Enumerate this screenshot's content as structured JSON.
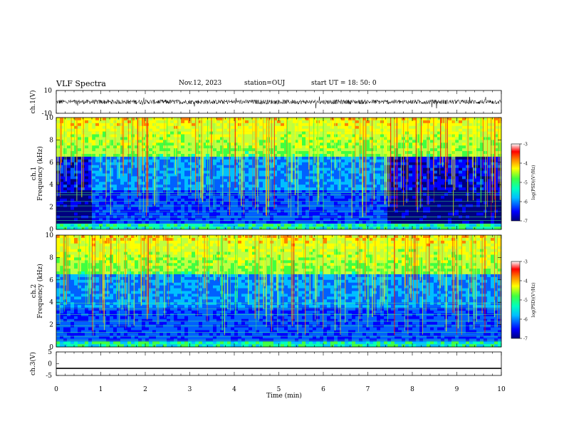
{
  "header": {
    "title": "VLF Spectra",
    "date": "Nov.12, 2023",
    "station": "station=OUJ",
    "start": "start  UT =   18: 50: 0"
  },
  "colors": {
    "colormap": [
      "#00007f",
      "#0000ff",
      "#00bfff",
      "#00ffbf",
      "#40ff40",
      "#ffff00",
      "#ff8000",
      "#ff0000",
      "#ffffff"
    ]
  },
  "chart_data": [
    {
      "type": "line",
      "panel": "ch1-waveform",
      "ylabel": "ch.1(V)",
      "ylim": [
        -10,
        10
      ],
      "yticks": [
        "10",
        "-10"
      ],
      "xlim": [
        0,
        10
      ],
      "baseline": 0,
      "noise_amplitude": 2
    },
    {
      "type": "heatmap",
      "panel": "ch1-spectrogram",
      "ylabel_top": "ch.1",
      "ylabel": "Frequency  (kHz)",
      "ylim": [
        0,
        10
      ],
      "yticks": [
        "0",
        "2",
        "4",
        "6",
        "8",
        "10"
      ],
      "xlim": [
        0,
        10
      ],
      "colorbar": {
        "label": "log(PSD)(V²/Hz)",
        "range": [
          -7,
          -3
        ],
        "ticks": [
          "-3",
          "-4",
          "-5",
          "-6",
          "-7"
        ]
      }
    },
    {
      "type": "heatmap",
      "panel": "ch2-spectrogram",
      "ylabel_top": "ch.2",
      "ylabel": "Frequency  (kHz)",
      "ylim": [
        0,
        10
      ],
      "yticks": [
        "0",
        "2",
        "4",
        "6",
        "8",
        "10"
      ],
      "xlim": [
        0,
        10
      ],
      "colorbar": {
        "label": "log(PSD)(V²/Hz)",
        "range": [
          -7,
          -3
        ],
        "ticks": [
          "-3",
          "-4",
          "-5",
          "-6",
          "-7"
        ]
      }
    },
    {
      "type": "line",
      "panel": "ch3-waveform",
      "ylabel": "ch.3(V)",
      "ylim": [
        -5,
        5
      ],
      "yticks": [
        "5",
        "0",
        "-5"
      ],
      "xlim": [
        0,
        10
      ],
      "constant_value": -2
    }
  ],
  "xaxis": {
    "label": "Time  (min)",
    "ticks": [
      "0",
      "1",
      "2",
      "3",
      "4",
      "5",
      "6",
      "7",
      "8",
      "9",
      "10"
    ]
  }
}
